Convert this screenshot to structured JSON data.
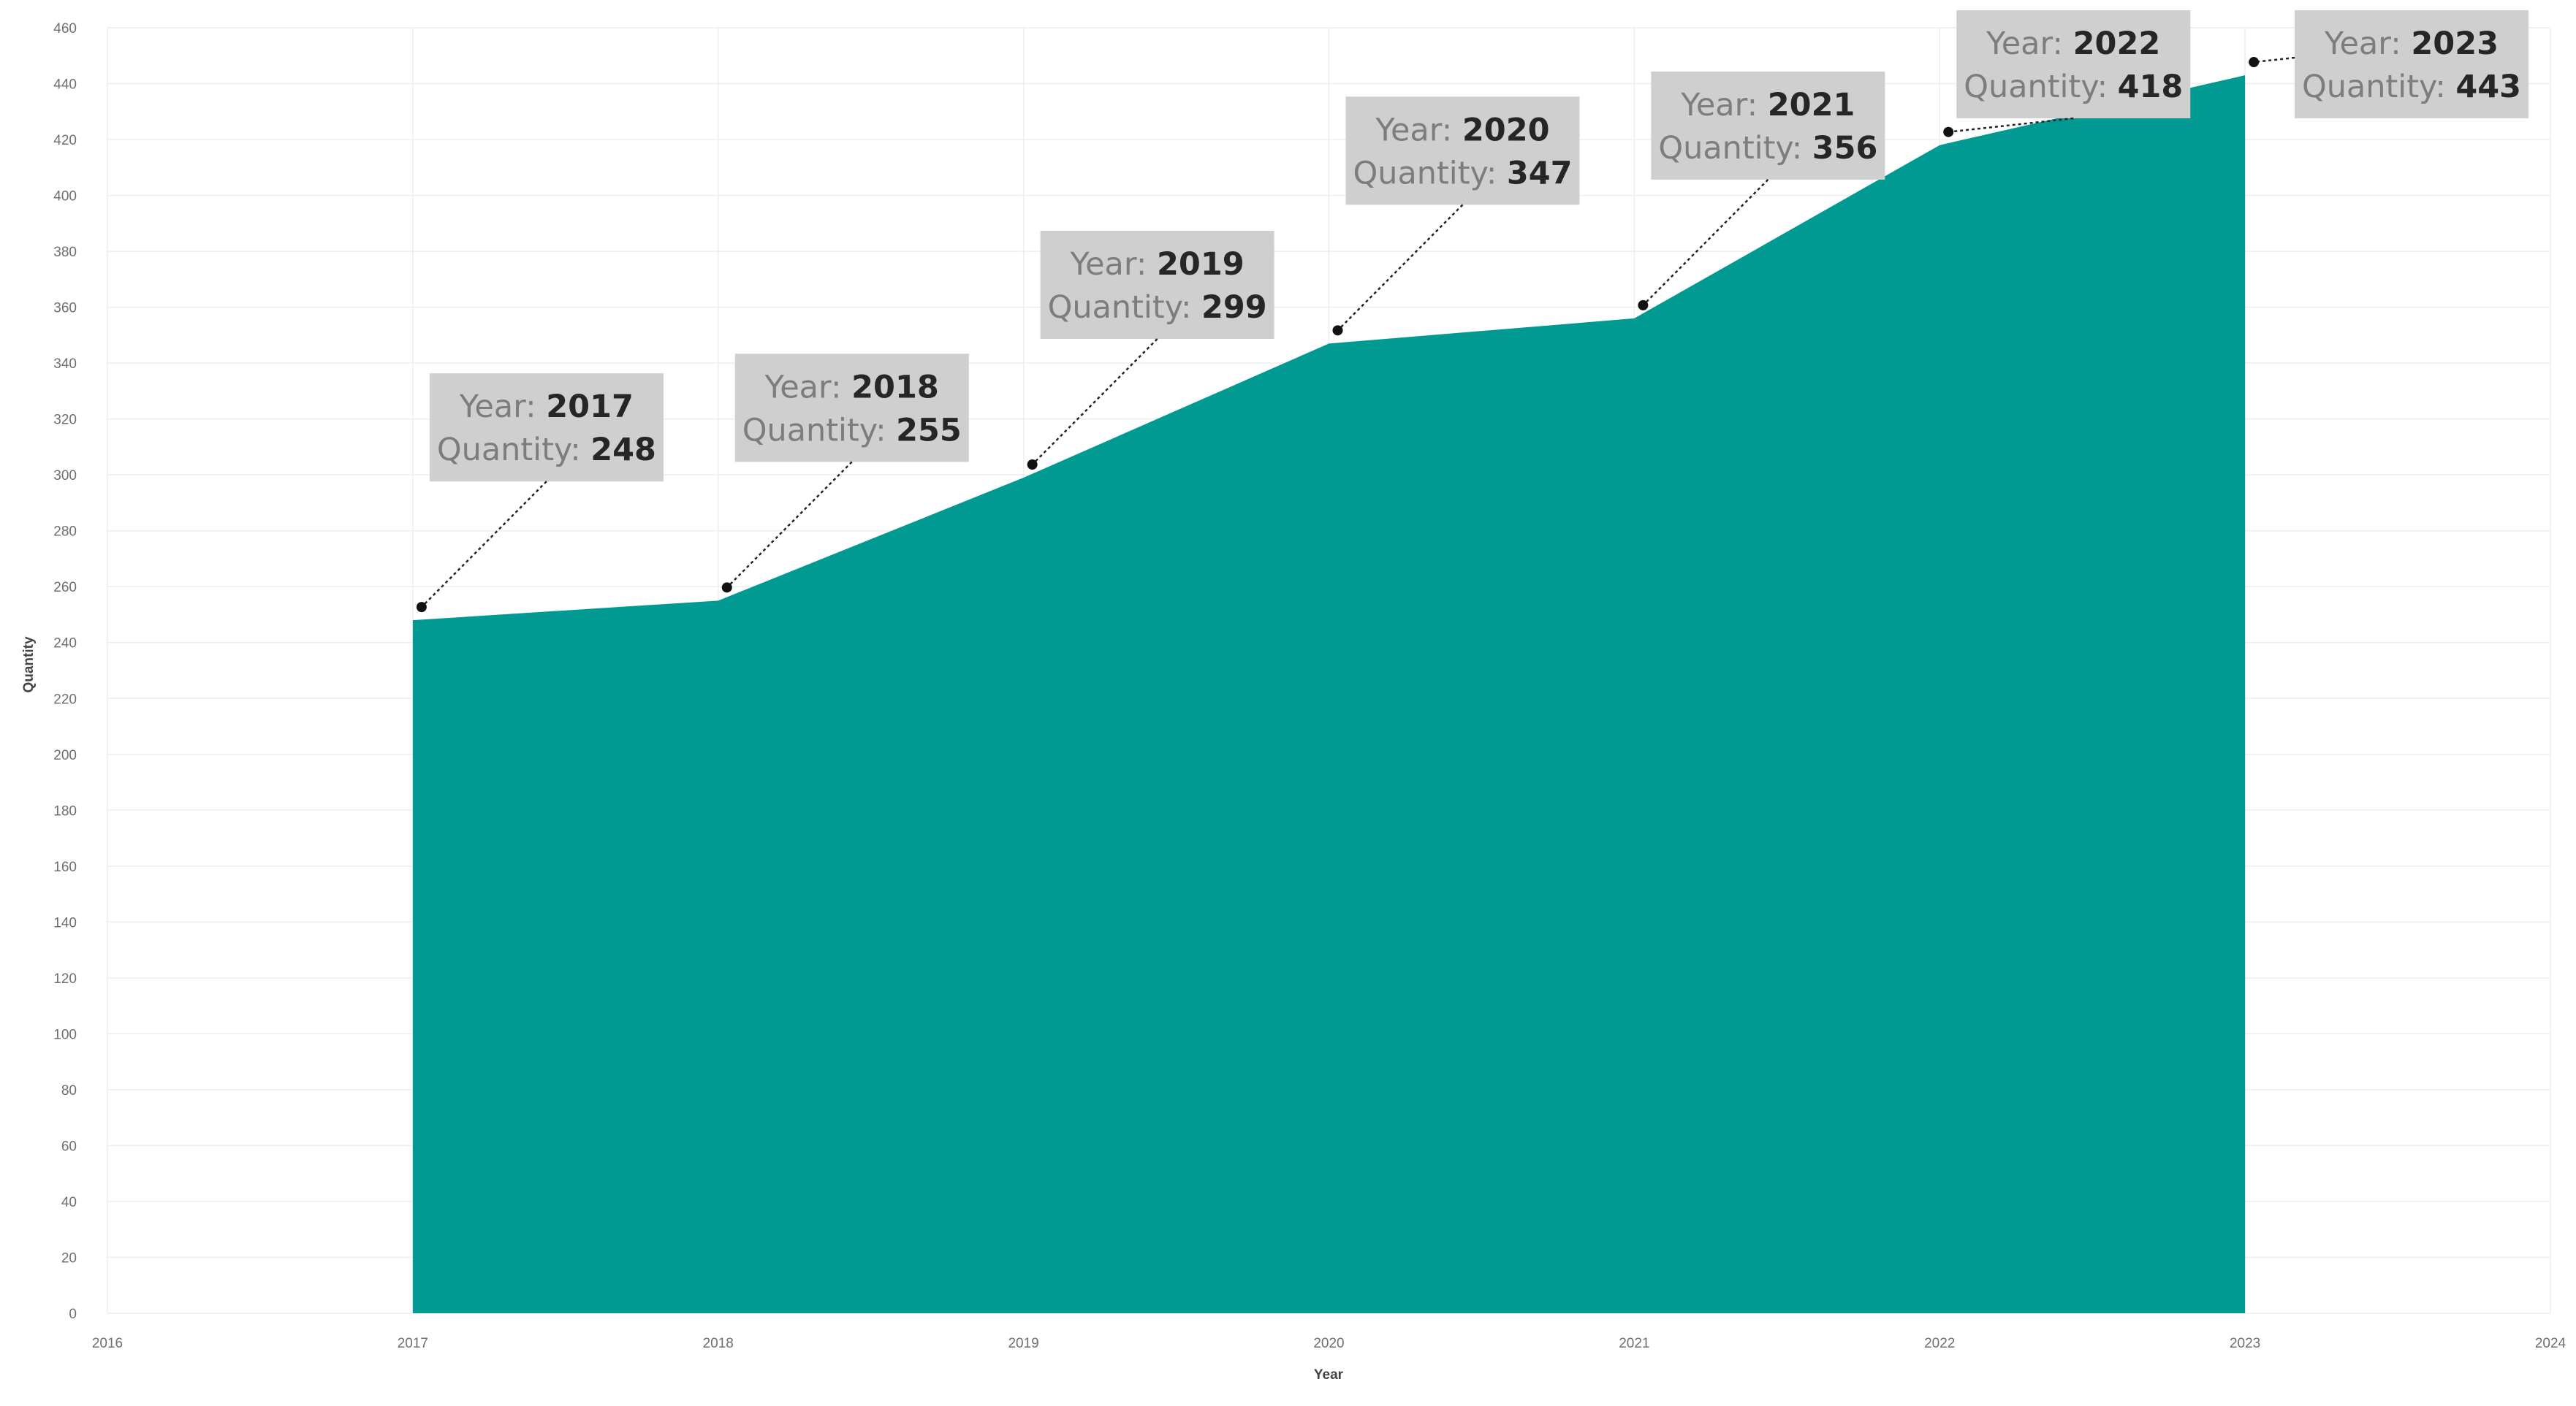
{
  "chart_data": {
    "type": "area",
    "xlabel": "Year",
    "ylabel": "Quantity",
    "x_ticks": [
      "2016",
      "2017",
      "2018",
      "2019",
      "2020",
      "2021",
      "2022",
      "2023",
      "2024"
    ],
    "y_ticks": [
      0,
      20,
      40,
      60,
      80,
      100,
      120,
      140,
      160,
      180,
      200,
      220,
      240,
      260,
      280,
      300,
      320,
      340,
      360,
      380,
      400,
      420,
      440,
      460
    ],
    "xlim": [
      2016,
      2024
    ],
    "ylim": [
      0,
      460
    ],
    "grid": true,
    "fill_color": "#009A93",
    "x": [
      2017,
      2018,
      2019,
      2020,
      2021,
      2022,
      2023
    ],
    "values": [
      248,
      255,
      299,
      347,
      356,
      418,
      443
    ],
    "annotation_key_year": "Year:",
    "annotation_key_quantity": "Quantity:",
    "annotations": [
      {
        "year": "2017",
        "quantity": "248"
      },
      {
        "year": "2018",
        "quantity": "255"
      },
      {
        "year": "2019",
        "quantity": "299"
      },
      {
        "year": "2020",
        "quantity": "347"
      },
      {
        "year": "2021",
        "quantity": "356"
      },
      {
        "year": "2022",
        "quantity": "418"
      },
      {
        "year": "2023",
        "quantity": "443"
      }
    ]
  }
}
